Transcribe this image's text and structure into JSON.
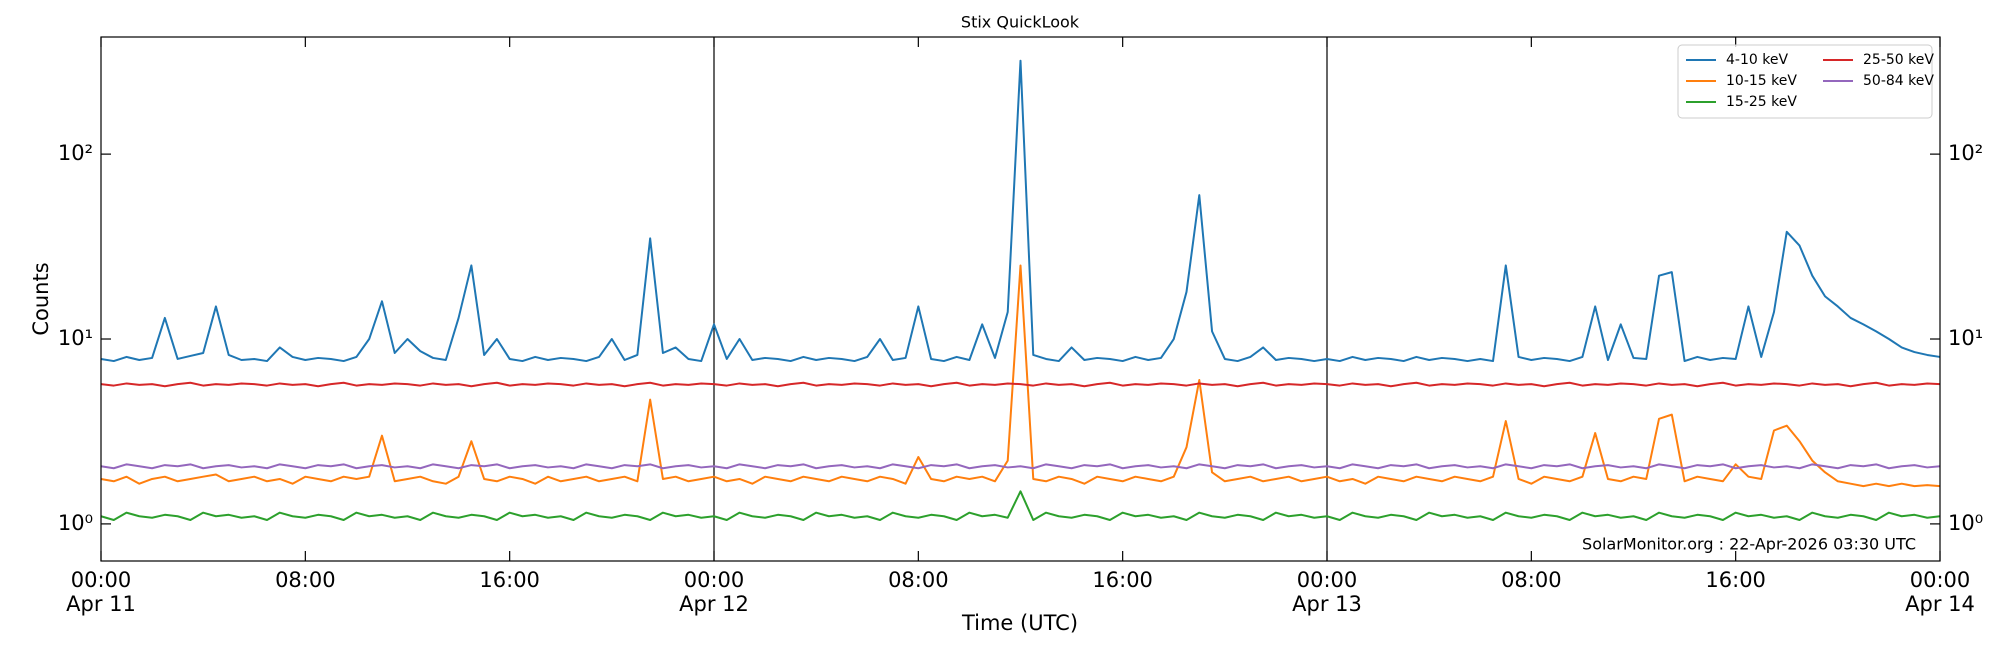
{
  "chart_data": {
    "type": "line",
    "title": "Stix QuickLook",
    "xlabel": "Time (UTC)",
    "ylabel": "Counts",
    "annotation": "SolarMonitor.org : 22-Apr-2026 03:30 UTC",
    "yscale": "log",
    "ylim": [
      0.63,
      430
    ],
    "yticks": [
      {
        "value": 1,
        "label": "10⁰"
      },
      {
        "value": 10,
        "label": "10¹"
      },
      {
        "value": 100,
        "label": "10²"
      }
    ],
    "xlim": [
      "Apr 11 00:00",
      "Apr 14 00:00"
    ],
    "xticks": [
      {
        "value": "Apr 11 00:00",
        "label": "00:00\nApr 11"
      },
      {
        "value": "Apr 11 08:00",
        "label": "08:00"
      },
      {
        "value": "Apr 11 16:00",
        "label": "16:00"
      },
      {
        "value": "Apr 12 00:00",
        "label": "00:00\nApr 12"
      },
      {
        "value": "Apr 12 08:00",
        "label": "08:00"
      },
      {
        "value": "Apr 12 16:00",
        "label": "16:00"
      },
      {
        "value": "Apr 13 00:00",
        "label": "00:00\nApr 13"
      },
      {
        "value": "Apr 13 08:00",
        "label": "08:00"
      },
      {
        "value": "Apr 13 16:00",
        "label": "16:00"
      },
      {
        "value": "Apr 14 00:00",
        "label": "00:00\nApr 14"
      }
    ],
    "vlines": [
      "Apr 12 00:00",
      "Apr 13 00:00"
    ],
    "legend": "upper right",
    "legend_columns": 2,
    "x": [
      "Apr 11 00:00",
      "Apr 11 00:30",
      "Apr 11 01:00",
      "Apr 11 01:30",
      "Apr 11 02:00",
      "Apr 11 02:30",
      "Apr 11 03:00",
      "Apr 11 03:30",
      "Apr 11 04:00",
      "Apr 11 04:30",
      "Apr 11 05:00",
      "Apr 11 05:30",
      "Apr 11 06:00",
      "Apr 11 06:30",
      "Apr 11 07:00",
      "Apr 11 07:30",
      "Apr 11 08:00",
      "Apr 11 08:30",
      "Apr 11 09:00",
      "Apr 11 09:30",
      "Apr 11 10:00",
      "Apr 11 10:30",
      "Apr 11 11:00",
      "Apr 11 11:30",
      "Apr 11 12:00",
      "Apr 11 12:30",
      "Apr 11 13:00",
      "Apr 11 13:30",
      "Apr 11 14:00",
      "Apr 11 14:30",
      "Apr 11 15:00",
      "Apr 11 15:30",
      "Apr 11 16:00",
      "Apr 11 16:30",
      "Apr 11 17:00",
      "Apr 11 17:30",
      "Apr 11 18:00",
      "Apr 11 18:30",
      "Apr 11 19:00",
      "Apr 11 19:30",
      "Apr 11 20:00",
      "Apr 11 20:30",
      "Apr 11 21:00",
      "Apr 11 21:30",
      "Apr 11 22:00",
      "Apr 11 22:30",
      "Apr 11 23:00",
      "Apr 11 23:30",
      "Apr 12 00:00",
      "Apr 12 00:30",
      "Apr 12 01:00",
      "Apr 12 01:30",
      "Apr 12 02:00",
      "Apr 12 02:30",
      "Apr 12 03:00",
      "Apr 12 03:30",
      "Apr 12 04:00",
      "Apr 12 04:30",
      "Apr 12 05:00",
      "Apr 12 05:30",
      "Apr 12 06:00",
      "Apr 12 06:30",
      "Apr 12 07:00",
      "Apr 12 07:30",
      "Apr 12 08:00",
      "Apr 12 08:30",
      "Apr 12 09:00",
      "Apr 12 09:30",
      "Apr 12 10:00",
      "Apr 12 10:30",
      "Apr 12 11:00",
      "Apr 12 11:30",
      "Apr 12 12:00",
      "Apr 12 12:30",
      "Apr 12 13:00",
      "Apr 12 13:30",
      "Apr 12 14:00",
      "Apr 12 14:30",
      "Apr 12 15:00",
      "Apr 12 15:30",
      "Apr 12 16:00",
      "Apr 12 16:30",
      "Apr 12 17:00",
      "Apr 12 17:30",
      "Apr 12 18:00",
      "Apr 12 18:30",
      "Apr 12 19:00",
      "Apr 12 19:30",
      "Apr 12 20:00",
      "Apr 12 20:30",
      "Apr 12 21:00",
      "Apr 12 21:30",
      "Apr 12 22:00",
      "Apr 12 22:30",
      "Apr 12 23:00",
      "Apr 12 23:30",
      "Apr 13 00:00",
      "Apr 13 00:30",
      "Apr 13 01:00",
      "Apr 13 01:30",
      "Apr 13 02:00",
      "Apr 13 02:30",
      "Apr 13 03:00",
      "Apr 13 03:30",
      "Apr 13 04:00",
      "Apr 13 04:30",
      "Apr 13 05:00",
      "Apr 13 05:30",
      "Apr 13 06:00",
      "Apr 13 06:30",
      "Apr 13 07:00",
      "Apr 13 07:30",
      "Apr 13 08:00",
      "Apr 13 08:30",
      "Apr 13 09:00",
      "Apr 13 09:30",
      "Apr 13 10:00",
      "Apr 13 10:30",
      "Apr 13 11:00",
      "Apr 13 11:30",
      "Apr 13 12:00",
      "Apr 13 12:30",
      "Apr 13 13:00",
      "Apr 13 13:30",
      "Apr 13 14:00",
      "Apr 13 14:30",
      "Apr 13 15:00",
      "Apr 13 15:30",
      "Apr 13 16:00",
      "Apr 13 16:30",
      "Apr 13 17:00",
      "Apr 13 17:30",
      "Apr 13 18:00",
      "Apr 13 18:30",
      "Apr 13 19:00",
      "Apr 13 19:30",
      "Apr 13 20:00",
      "Apr 13 20:30",
      "Apr 13 21:00",
      "Apr 13 21:30",
      "Apr 13 22:00",
      "Apr 13 22:30",
      "Apr 13 23:00",
      "Apr 13 23:30",
      "Apr 14 00:00"
    ],
    "series": [
      {
        "name": "4-10 keV",
        "color": "#1f77b4",
        "values": [
          7.8,
          7.6,
          8.0,
          7.7,
          7.9,
          13,
          7.8,
          8.1,
          8.4,
          15,
          8.2,
          7.7,
          7.8,
          7.6,
          9,
          8.0,
          7.7,
          7.9,
          7.8,
          7.6,
          8.0,
          10,
          16,
          8.4,
          10,
          8.6,
          7.9,
          7.7,
          13,
          25,
          8.2,
          10,
          7.8,
          7.6,
          8.0,
          7.7,
          7.9,
          7.8,
          7.6,
          8.0,
          10,
          7.7,
          8.2,
          35,
          8.4,
          9,
          7.8,
          7.6,
          12,
          7.8,
          10,
          7.7,
          7.9,
          7.8,
          7.6,
          8.0,
          7.7,
          7.9,
          7.8,
          7.6,
          8.0,
          10,
          7.7,
          7.9,
          15,
          7.8,
          7.6,
          8.0,
          7.7,
          12,
          7.9,
          14,
          320,
          8.2,
          7.8,
          7.6,
          9,
          7.7,
          7.9,
          7.8,
          7.6,
          8.0,
          7.7,
          7.9,
          10,
          18,
          60,
          11,
          7.8,
          7.6,
          8.0,
          9,
          7.7,
          7.9,
          7.8,
          7.6,
          7.8,
          7.6,
          8.0,
          7.7,
          7.9,
          7.8,
          7.6,
          8.0,
          7.7,
          7.9,
          7.8,
          7.6,
          7.8,
          7.6,
          25,
          8.0,
          7.7,
          7.9,
          7.8,
          7.6,
          8.0,
          15,
          7.7,
          12,
          7.9,
          7.8,
          22,
          23,
          7.6,
          8.0,
          7.7,
          7.9,
          7.8,
          15,
          8.0,
          14,
          38,
          32,
          22,
          17,
          15,
          13,
          12,
          11,
          10,
          9,
          8.5,
          8.2,
          8.0
        ]
      },
      {
        "name": "10-15 keV",
        "color": "#ff7f0e",
        "values": [
          1.75,
          1.7,
          1.8,
          1.65,
          1.75,
          1.8,
          1.7,
          1.75,
          1.8,
          1.85,
          1.7,
          1.75,
          1.8,
          1.7,
          1.75,
          1.65,
          1.8,
          1.75,
          1.7,
          1.8,
          1.75,
          1.8,
          3.0,
          1.7,
          1.75,
          1.8,
          1.7,
          1.65,
          1.8,
          2.8,
          1.75,
          1.7,
          1.8,
          1.75,
          1.65,
          1.8,
          1.7,
          1.75,
          1.8,
          1.7,
          1.75,
          1.8,
          1.7,
          4.7,
          1.75,
          1.8,
          1.7,
          1.75,
          1.8,
          1.7,
          1.75,
          1.65,
          1.8,
          1.75,
          1.7,
          1.8,
          1.75,
          1.7,
          1.8,
          1.75,
          1.7,
          1.8,
          1.75,
          1.65,
          2.3,
          1.75,
          1.7,
          1.8,
          1.75,
          1.8,
          1.7,
          2.2,
          25,
          1.75,
          1.7,
          1.8,
          1.75,
          1.65,
          1.8,
          1.75,
          1.7,
          1.8,
          1.75,
          1.7,
          1.8,
          2.6,
          6.0,
          1.9,
          1.7,
          1.75,
          1.8,
          1.7,
          1.75,
          1.8,
          1.7,
          1.75,
          1.8,
          1.7,
          1.75,
          1.65,
          1.8,
          1.75,
          1.7,
          1.8,
          1.75,
          1.7,
          1.8,
          1.75,
          1.7,
          1.8,
          3.6,
          1.75,
          1.65,
          1.8,
          1.75,
          1.7,
          1.8,
          3.1,
          1.75,
          1.7,
          1.8,
          1.75,
          3.7,
          3.9,
          1.7,
          1.8,
          1.75,
          1.7,
          2.1,
          1.8,
          1.75,
          3.2,
          3.4,
          2.8,
          2.2,
          1.9,
          1.7,
          1.65,
          1.6,
          1.65,
          1.6,
          1.65,
          1.6,
          1.62,
          1.6
        ]
      },
      {
        "name": "15-25 keV",
        "color": "#2ca02c",
        "values": [
          1.1,
          1.05,
          1.15,
          1.1,
          1.08,
          1.12,
          1.1,
          1.05,
          1.15,
          1.1,
          1.12,
          1.08,
          1.1,
          1.05,
          1.15,
          1.1,
          1.08,
          1.12,
          1.1,
          1.05,
          1.15,
          1.1,
          1.12,
          1.08,
          1.1,
          1.05,
          1.15,
          1.1,
          1.08,
          1.12,
          1.1,
          1.05,
          1.15,
          1.1,
          1.12,
          1.08,
          1.1,
          1.05,
          1.15,
          1.1,
          1.08,
          1.12,
          1.1,
          1.05,
          1.15,
          1.1,
          1.12,
          1.08,
          1.1,
          1.05,
          1.15,
          1.1,
          1.08,
          1.12,
          1.1,
          1.05,
          1.15,
          1.1,
          1.12,
          1.08,
          1.1,
          1.05,
          1.15,
          1.1,
          1.08,
          1.12,
          1.1,
          1.05,
          1.15,
          1.1,
          1.12,
          1.08,
          1.5,
          1.05,
          1.15,
          1.1,
          1.08,
          1.12,
          1.1,
          1.05,
          1.15,
          1.1,
          1.12,
          1.08,
          1.1,
          1.05,
          1.15,
          1.1,
          1.08,
          1.12,
          1.1,
          1.05,
          1.15,
          1.1,
          1.12,
          1.08,
          1.1,
          1.05,
          1.15,
          1.1,
          1.08,
          1.12,
          1.1,
          1.05,
          1.15,
          1.1,
          1.12,
          1.08,
          1.1,
          1.05,
          1.15,
          1.1,
          1.08,
          1.12,
          1.1,
          1.05,
          1.15,
          1.1,
          1.12,
          1.08,
          1.1,
          1.05,
          1.15,
          1.1,
          1.08,
          1.12,
          1.1,
          1.05,
          1.15,
          1.1,
          1.12,
          1.08,
          1.1,
          1.05,
          1.15,
          1.1,
          1.08,
          1.12,
          1.1,
          1.05,
          1.15,
          1.1,
          1.12,
          1.08,
          1.1
        ]
      },
      {
        "name": "25-50 keV",
        "color": "#d62728",
        "values": [
          5.7,
          5.6,
          5.75,
          5.65,
          5.7,
          5.55,
          5.7,
          5.8,
          5.6,
          5.7,
          5.65,
          5.75,
          5.7,
          5.6,
          5.75,
          5.65,
          5.7,
          5.55,
          5.7,
          5.8,
          5.6,
          5.7,
          5.65,
          5.75,
          5.7,
          5.6,
          5.75,
          5.65,
          5.7,
          5.55,
          5.7,
          5.8,
          5.6,
          5.7,
          5.65,
          5.75,
          5.7,
          5.6,
          5.75,
          5.65,
          5.7,
          5.55,
          5.7,
          5.8,
          5.6,
          5.7,
          5.65,
          5.75,
          5.7,
          5.6,
          5.75,
          5.65,
          5.7,
          5.55,
          5.7,
          5.8,
          5.6,
          5.7,
          5.65,
          5.75,
          5.7,
          5.6,
          5.75,
          5.65,
          5.7,
          5.55,
          5.7,
          5.8,
          5.6,
          5.7,
          5.65,
          5.75,
          5.7,
          5.6,
          5.75,
          5.65,
          5.7,
          5.55,
          5.7,
          5.8,
          5.6,
          5.7,
          5.65,
          5.75,
          5.7,
          5.6,
          5.75,
          5.65,
          5.7,
          5.55,
          5.7,
          5.8,
          5.6,
          5.7,
          5.65,
          5.75,
          5.7,
          5.6,
          5.75,
          5.65,
          5.7,
          5.55,
          5.7,
          5.8,
          5.6,
          5.7,
          5.65,
          5.75,
          5.7,
          5.6,
          5.75,
          5.65,
          5.7,
          5.55,
          5.7,
          5.8,
          5.6,
          5.7,
          5.65,
          5.75,
          5.7,
          5.6,
          5.75,
          5.65,
          5.7,
          5.55,
          5.7,
          5.8,
          5.6,
          5.7,
          5.65,
          5.75,
          5.7,
          5.6,
          5.75,
          5.65,
          5.7,
          5.55,
          5.7,
          5.8,
          5.6,
          5.7,
          5.65,
          5.75,
          5.7
        ]
      },
      {
        "name": "50-84 keV",
        "color": "#9467bd",
        "values": [
          2.05,
          2.0,
          2.1,
          2.05,
          2.0,
          2.08,
          2.05,
          2.1,
          2.0,
          2.05,
          2.08,
          2.02,
          2.05,
          2.0,
          2.1,
          2.05,
          2.0,
          2.08,
          2.05,
          2.1,
          2.0,
          2.05,
          2.08,
          2.02,
          2.05,
          2.0,
          2.1,
          2.05,
          2.0,
          2.08,
          2.05,
          2.1,
          2.0,
          2.05,
          2.08,
          2.02,
          2.05,
          2.0,
          2.1,
          2.05,
          2.0,
          2.08,
          2.05,
          2.1,
          2.0,
          2.05,
          2.08,
          2.02,
          2.05,
          2.0,
          2.1,
          2.05,
          2.0,
          2.08,
          2.05,
          2.1,
          2.0,
          2.05,
          2.08,
          2.02,
          2.05,
          2.0,
          2.1,
          2.05,
          2.0,
          2.08,
          2.05,
          2.1,
          2.0,
          2.05,
          2.08,
          2.02,
          2.05,
          2.0,
          2.1,
          2.05,
          2.0,
          2.08,
          2.05,
          2.1,
          2.0,
          2.05,
          2.08,
          2.02,
          2.05,
          2.0,
          2.1,
          2.05,
          2.0,
          2.08,
          2.05,
          2.1,
          2.0,
          2.05,
          2.08,
          2.02,
          2.05,
          2.0,
          2.1,
          2.05,
          2.0,
          2.08,
          2.05,
          2.1,
          2.0,
          2.05,
          2.08,
          2.02,
          2.05,
          2.0,
          2.1,
          2.05,
          2.0,
          2.08,
          2.05,
          2.1,
          2.0,
          2.05,
          2.08,
          2.02,
          2.05,
          2.0,
          2.1,
          2.05,
          2.0,
          2.08,
          2.05,
          2.1,
          2.0,
          2.05,
          2.08,
          2.02,
          2.05,
          2.0,
          2.1,
          2.05,
          2.0,
          2.08,
          2.05,
          2.1,
          2.0,
          2.05,
          2.08,
          2.02,
          2.05
        ]
      }
    ]
  }
}
